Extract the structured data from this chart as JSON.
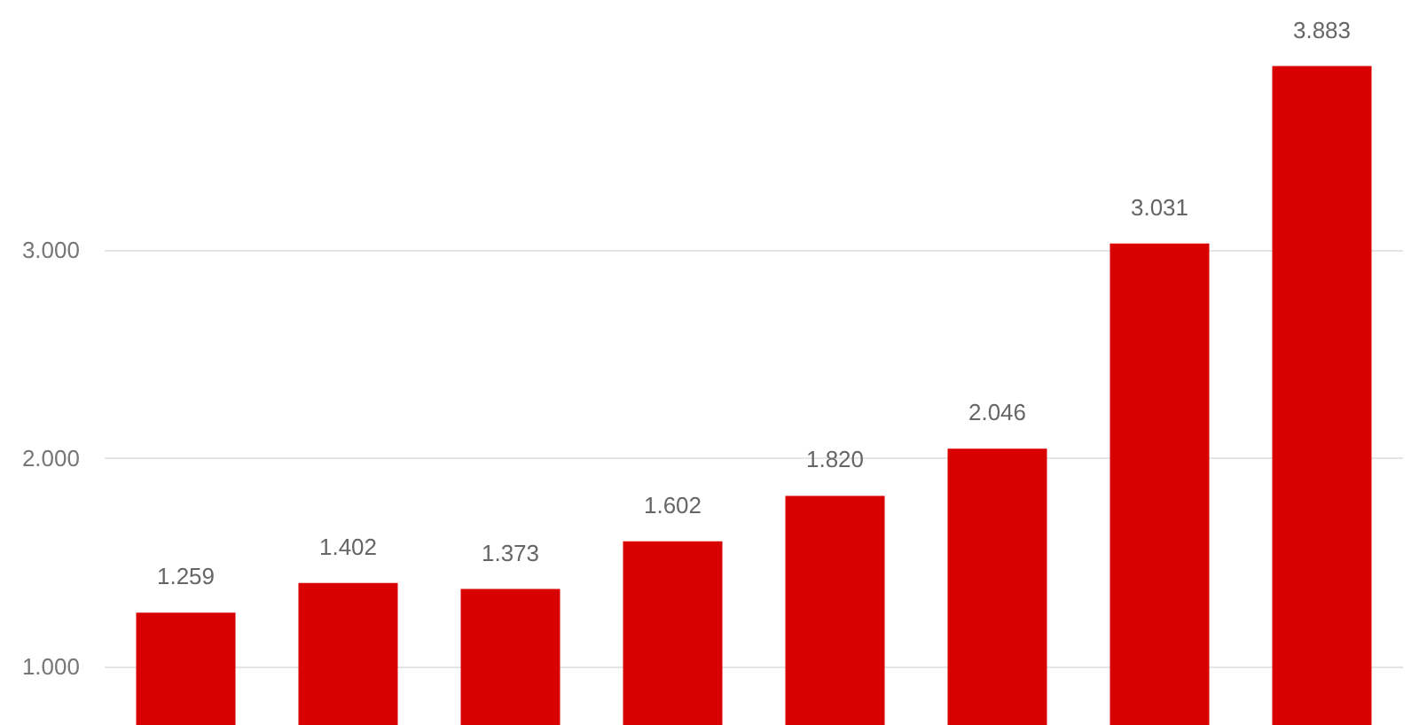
{
  "chart_data": {
    "type": "bar",
    "categories": [
      null,
      null,
      null,
      null,
      null,
      null,
      null,
      null
    ],
    "values": [
      1259,
      1402,
      1373,
      1602,
      1820,
      2046,
      3031,
      3883
    ],
    "value_labels": [
      "1.259",
      "1.402",
      "1.373",
      "1.602",
      "1.820",
      "2.046",
      "3.031",
      "3.883"
    ],
    "color": "#d80000",
    "ylim": [
      720,
      4200
    ],
    "yticks": [
      {
        "value": 1000,
        "label": "1.000"
      },
      {
        "value": 2000,
        "label": "2.000"
      },
      {
        "value": 3000,
        "label": "3.000"
      }
    ],
    "grid": "y",
    "tick_labels": "y"
  }
}
